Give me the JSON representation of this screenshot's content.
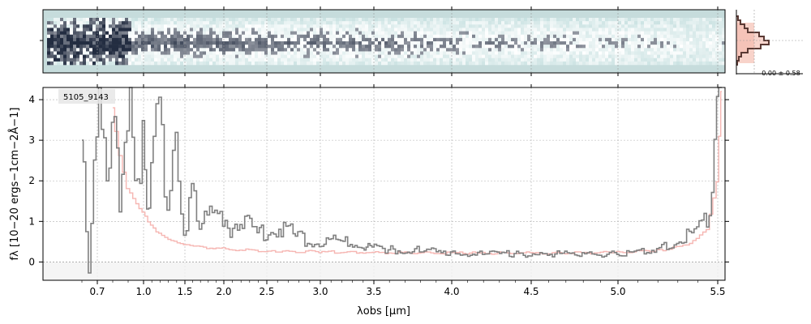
{
  "chart_data": [
    {
      "type": "heatmap",
      "panel": "2d-spectrum",
      "description_axis": "shares wavelength axis with 1D spectrum",
      "colors": {
        "background": "#c6dcdc",
        "low": "#ffffff",
        "high": "#000000"
      }
    },
    {
      "type": "line",
      "panel": "1d-spectrum",
      "label": "5105_9143",
      "xlabel": "λobs [μm]",
      "ylabel": "fλ [10−20 ergs−1cm−2Å−1]",
      "xtick_labels": [
        "0.7",
        "1.0",
        "1.5",
        "2.0",
        "2.5",
        "3.0",
        "3.5",
        "4.0",
        "4.5",
        "5.0",
        "5.5"
      ],
      "xtick_values": [
        0.7,
        1.0,
        1.5,
        2.0,
        2.5,
        3.0,
        3.5,
        4.0,
        4.5,
        5.0,
        5.5
      ],
      "ytick_labels": [
        "0",
        "1",
        "2",
        "3",
        "4"
      ],
      "ytick_values": [
        0,
        1,
        2,
        3,
        4
      ],
      "ylim": [
        -0.45,
        4.3
      ],
      "xlim": [
        0.55,
        5.55
      ],
      "grid": true,
      "series": [
        {
          "color": "#808080",
          "points": [
            [
              0.6,
              3.0
            ],
            [
              0.65,
              -0.4
            ],
            [
              0.7,
              4.3
            ],
            [
              0.75,
              2.5
            ],
            [
              0.8,
              4.0
            ],
            [
              0.85,
              1.2
            ],
            [
              0.9,
              4.3
            ],
            [
              0.95,
              1.8
            ],
            [
              1.0,
              3.5
            ],
            [
              1.05,
              1.0
            ],
            [
              1.1,
              2.5
            ],
            [
              1.2,
              3.2
            ],
            [
              1.3,
              1.4
            ],
            [
              1.4,
              2.5
            ],
            [
              1.5,
              0.9
            ],
            [
              1.6,
              1.6
            ],
            [
              1.7,
              1.1
            ],
            [
              1.8,
              0.9
            ],
            [
              1.9,
              1.5
            ],
            [
              2.0,
              0.8
            ],
            [
              2.2,
              1.0
            ],
            [
              2.4,
              0.7
            ],
            [
              2.6,
              0.9
            ],
            [
              2.8,
              0.6
            ],
            [
              3.0,
              0.5
            ],
            [
              3.2,
              0.5
            ],
            [
              3.4,
              0.4
            ],
            [
              3.6,
              0.3
            ],
            [
              3.8,
              0.3
            ],
            [
              4.0,
              0.2
            ],
            [
              4.2,
              0.2
            ],
            [
              4.4,
              0.2
            ],
            [
              4.6,
              0.2
            ],
            [
              4.8,
              0.2
            ],
            [
              5.0,
              0.2
            ],
            [
              5.2,
              0.3
            ],
            [
              5.3,
              0.5
            ],
            [
              5.4,
              0.7
            ],
            [
              5.45,
              1.0
            ],
            [
              5.5,
              3.7
            ],
            [
              5.52,
              4.3
            ]
          ]
        },
        {
          "color": "#f6b6b2",
          "points": [
            [
              0.8,
              3.8
            ],
            [
              0.85,
              2.6
            ],
            [
              0.9,
              1.8
            ],
            [
              1.0,
              1.2
            ],
            [
              1.1,
              0.9
            ],
            [
              1.2,
              0.7
            ],
            [
              1.35,
              0.55
            ],
            [
              1.5,
              0.45
            ],
            [
              1.8,
              0.35
            ],
            [
              2.2,
              0.3
            ],
            [
              2.6,
              0.27
            ],
            [
              3.0,
              0.25
            ],
            [
              3.5,
              0.23
            ],
            [
              4.0,
              0.22
            ],
            [
              4.5,
              0.22
            ],
            [
              5.0,
              0.23
            ],
            [
              5.2,
              0.28
            ],
            [
              5.35,
              0.4
            ],
            [
              5.45,
              0.8
            ],
            [
              5.5,
              2.0
            ],
            [
              5.52,
              4.2
            ]
          ]
        }
      ]
    },
    {
      "type": "bar",
      "panel": "histogram",
      "label": "0.00 ± 0.58"
    }
  ]
}
